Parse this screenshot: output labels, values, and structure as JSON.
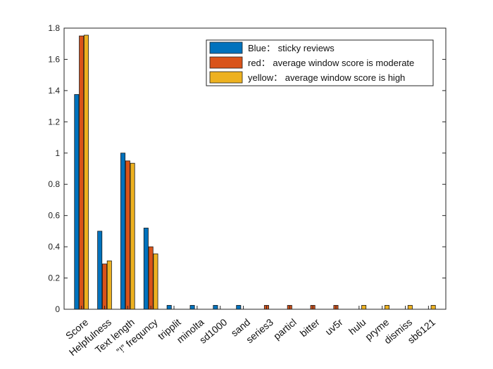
{
  "chart_data": {
    "type": "bar",
    "categories": [
      "Score",
      "Helpfulness",
      "Text length",
      "”!” frequncy",
      "tripplit",
      "minolta",
      "sd1000",
      "sand",
      "series3",
      "particl",
      "bitter",
      "uv5r",
      "hulu",
      "pryme",
      "dismiss",
      "sb6121"
    ],
    "series": [
      {
        "name": "Blue： sticky reviews",
        "color": "#0072BD",
        "values": [
          1.375,
          0.5,
          1.0,
          0.52,
          0.025,
          0.025,
          0.025,
          0.025,
          0,
          0,
          0,
          0,
          0,
          0,
          0,
          0
        ]
      },
      {
        "name": "red： average window score is moderate",
        "color": "#D95319",
        "values": [
          1.75,
          0.29,
          0.95,
          0.4,
          0,
          0,
          0,
          0,
          0.025,
          0.025,
          0.025,
          0.025,
          0,
          0,
          0,
          0
        ]
      },
      {
        "name": "yellow： average window score is high",
        "color": "#EDB120",
        "values": [
          1.755,
          0.31,
          0.935,
          0.355,
          0,
          0,
          0,
          0,
          0,
          0,
          0,
          0,
          0.025,
          0.025,
          0.025,
          0.025
        ]
      }
    ],
    "ylim": [
      0,
      1.8
    ],
    "yticks": [
      "0",
      "0.2",
      "0.4",
      "0.6",
      "0.8",
      "1",
      "1.2",
      "1.4",
      "1.6",
      "1.8"
    ],
    "grid": false,
    "legend_position": "top-right"
  }
}
